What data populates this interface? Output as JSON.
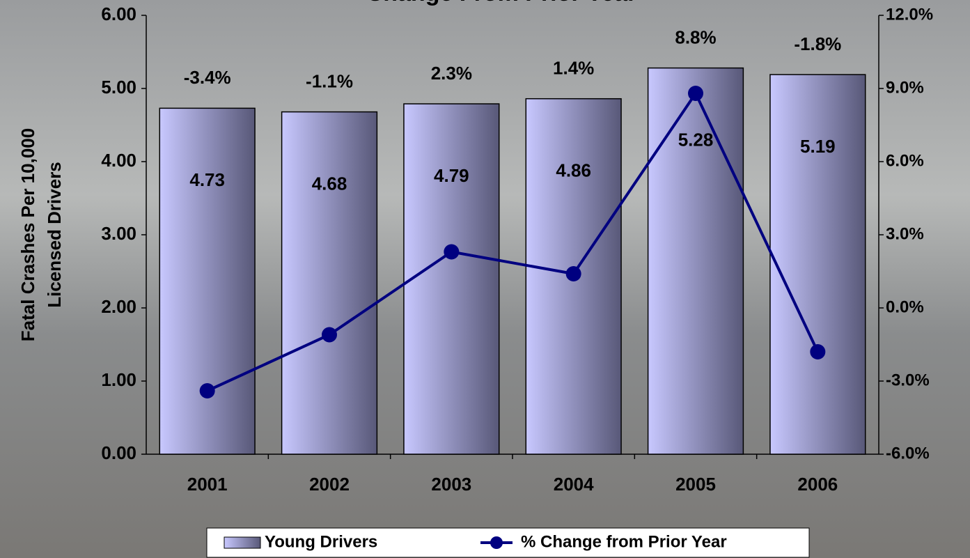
{
  "chart_data": {
    "type": "bar-line",
    "title": "Change From Prior Year",
    "ylabel": [
      "Fatal Crashes Per 10,000",
      "Licensed Drivers"
    ],
    "categories": [
      "2001",
      "2002",
      "2003",
      "2004",
      "2005",
      "2006"
    ],
    "series": [
      {
        "name": "Young Drivers",
        "type": "bar",
        "color": "#c8c8ff",
        "values": [
          4.73,
          4.68,
          4.79,
          4.86,
          5.28,
          5.19
        ]
      },
      {
        "name": "% Change from Prior Year",
        "type": "line",
        "axis": "y2",
        "color": "#000080",
        "values": [
          -3.4,
          -1.1,
          2.3,
          1.4,
          8.8,
          -1.8
        ],
        "value_labels": [
          "-3.4%",
          "-1.1%",
          "2.3%",
          "1.4%",
          "8.8%",
          "-1.8%"
        ]
      }
    ],
    "ylim": [
      0,
      6
    ],
    "yticks": [
      {
        "value": 0,
        "label": "0.00"
      },
      {
        "value": 1,
        "label": "1.00"
      },
      {
        "value": 2,
        "label": "2.00"
      },
      {
        "value": 3,
        "label": "3.00"
      },
      {
        "value": 4,
        "label": "4.00"
      },
      {
        "value": 5,
        "label": "5.00"
      },
      {
        "value": 6,
        "label": "6.00"
      }
    ],
    "y2lim": [
      -6,
      12
    ],
    "y2ticks": [
      {
        "value": -6,
        "label": "-6.0%"
      },
      {
        "value": -3,
        "label": "-3.0%"
      },
      {
        "value": 0,
        "label": "0.0%"
      },
      {
        "value": 3,
        "label": "3.0%"
      },
      {
        "value": 6,
        "label": "6.0%"
      },
      {
        "value": 9,
        "label": "9.0%"
      },
      {
        "value": 12,
        "label": "12.0%"
      }
    ],
    "legend": "bottom"
  }
}
